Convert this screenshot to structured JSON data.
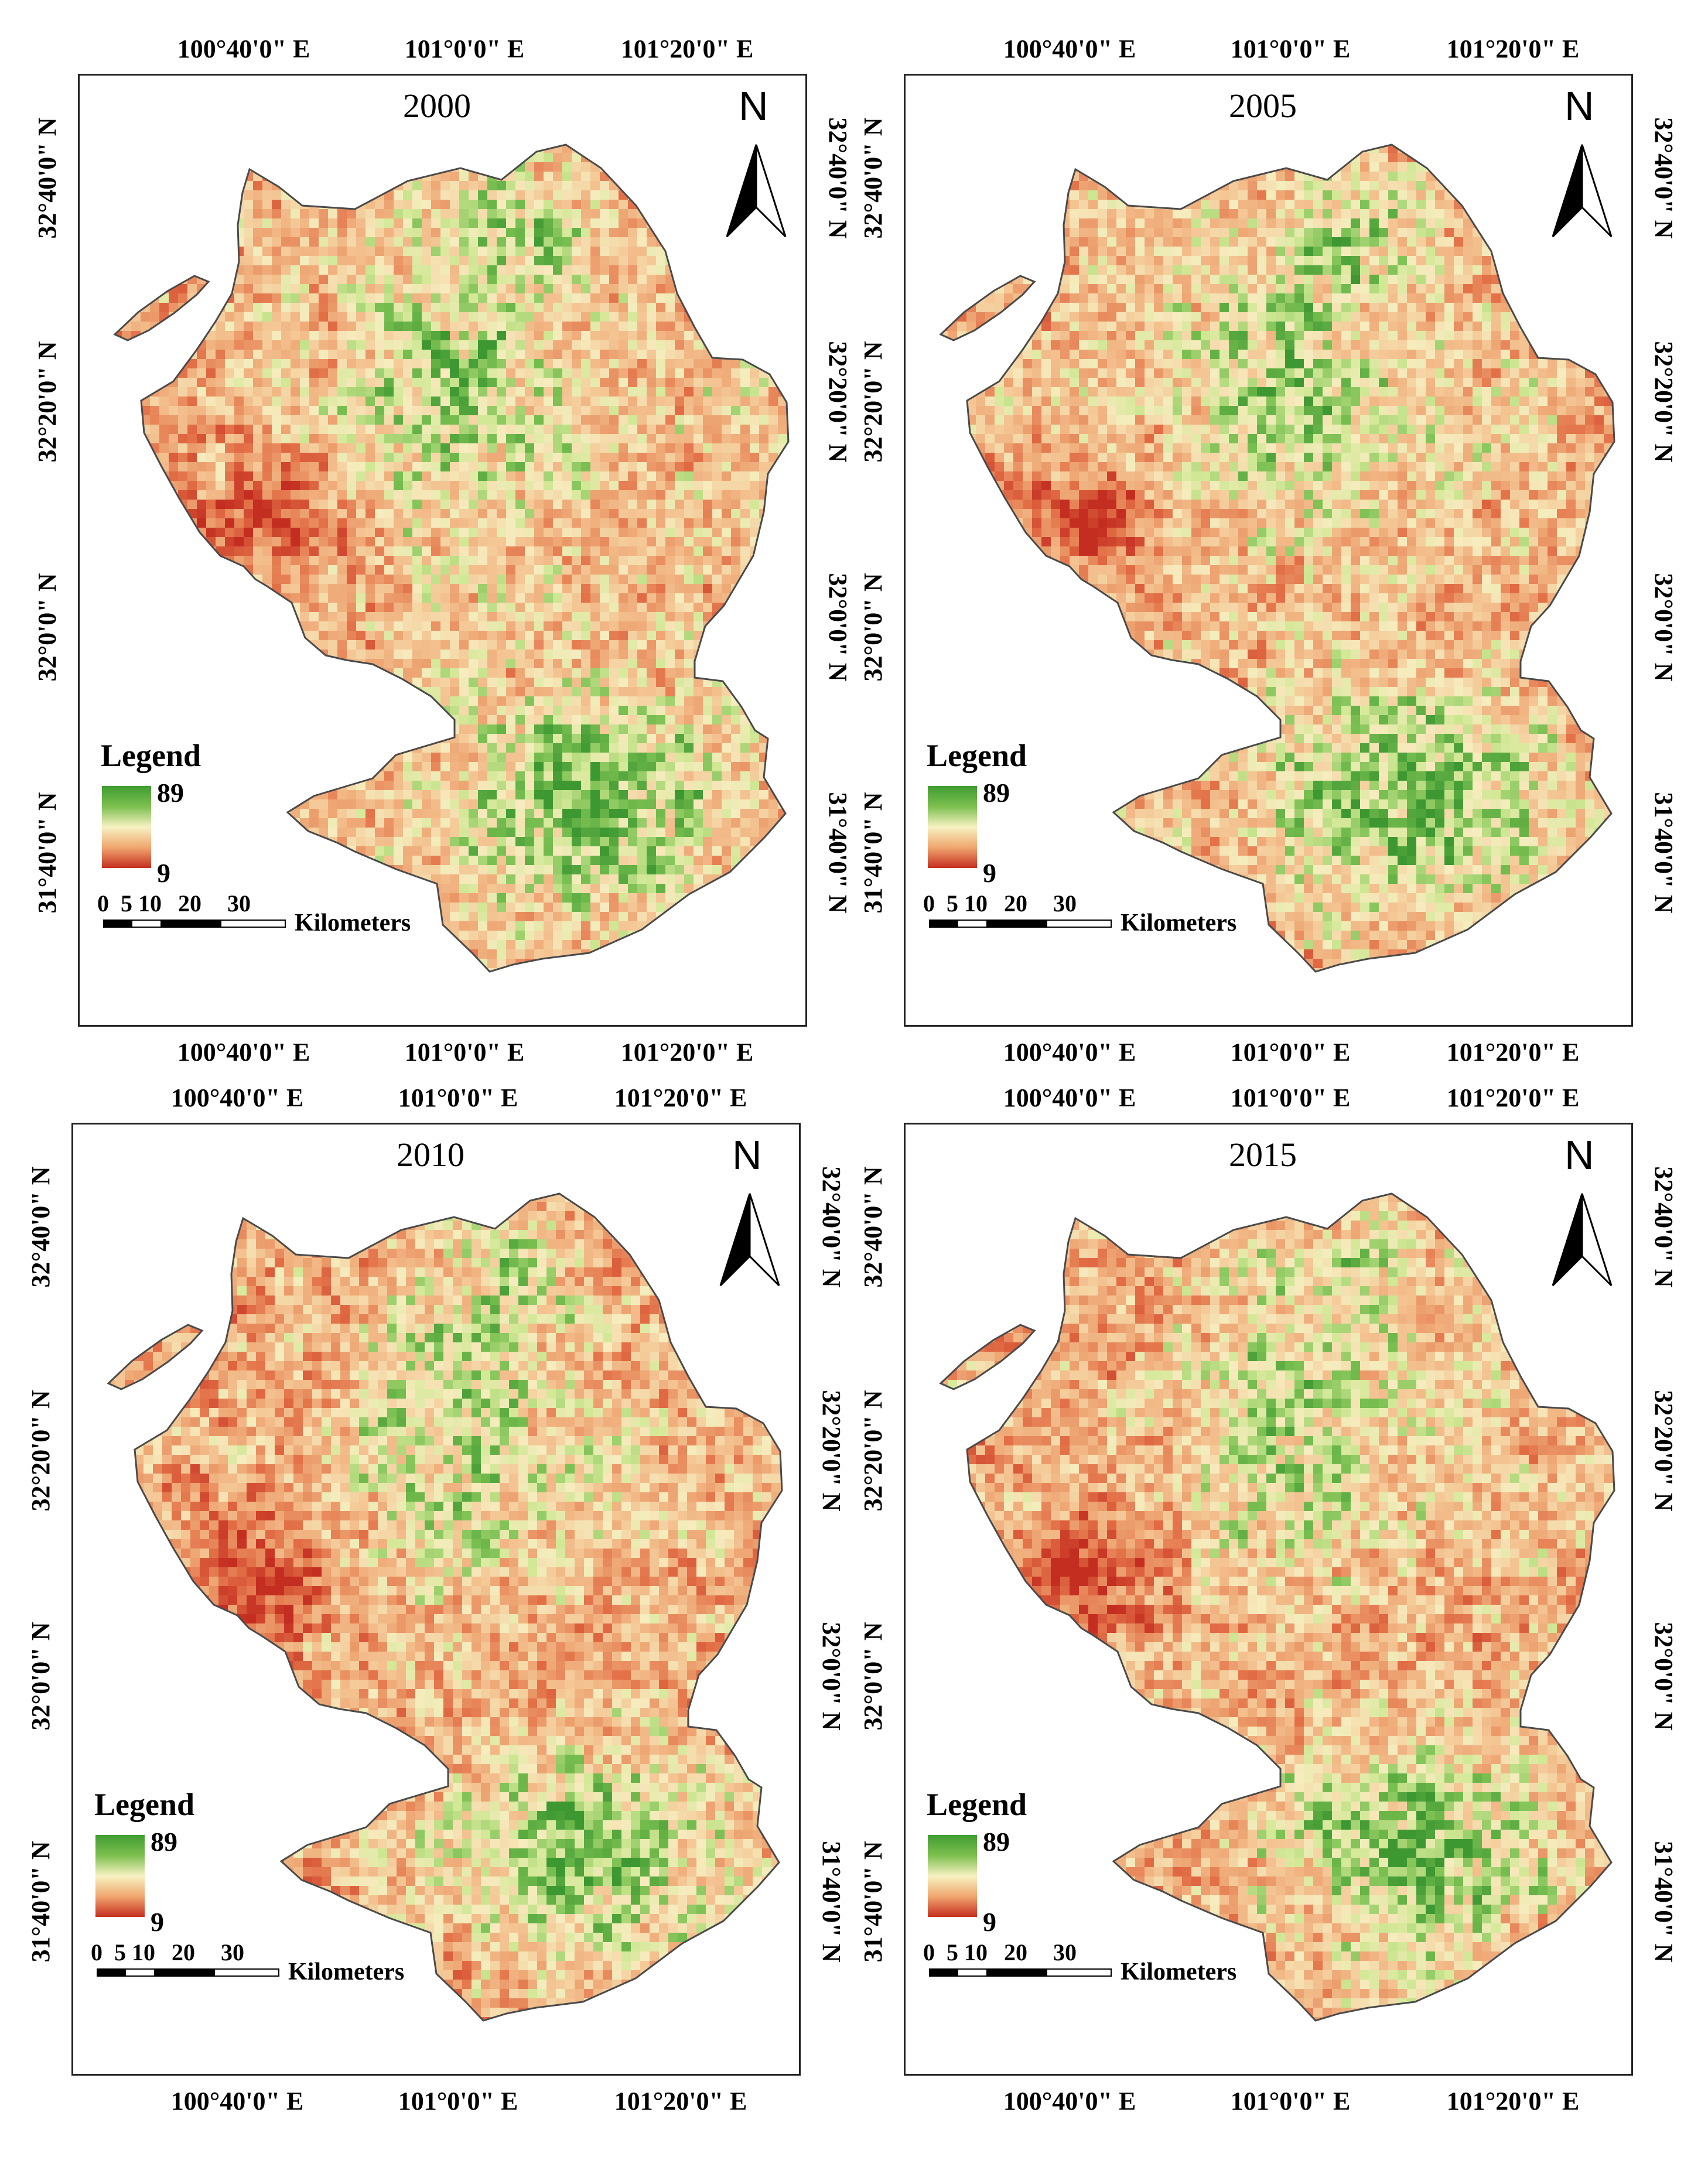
{
  "figure": {
    "coordinate_labels": {
      "longitudes": [
        "100°40'0\" E",
        "101°0'0\" E",
        "101°20'0\" E"
      ],
      "latitudes": [
        "32°40'0\" N",
        "32°20'0\" N",
        "32°0'0\" N",
        "31°40'0\" N"
      ]
    },
    "legend": {
      "title": "Legend",
      "max": "89",
      "min": "9",
      "colors": {
        "high": "#3f9d31",
        "mid": "#f7f2c2",
        "low": "#c62e20"
      }
    },
    "scale_bar": {
      "ticks": [
        "0",
        "5",
        "10",
        "20",
        "30"
      ],
      "unit": "Kilometers"
    },
    "north_arrow": {
      "label": "N",
      "icon": "north-arrow-icon"
    },
    "panels": [
      {
        "id": "p2000",
        "year": "2000"
      },
      {
        "id": "p2005",
        "year": "2005"
      },
      {
        "id": "p2010",
        "year": "2010"
      },
      {
        "id": "p2015",
        "year": "2015"
      }
    ]
  }
}
